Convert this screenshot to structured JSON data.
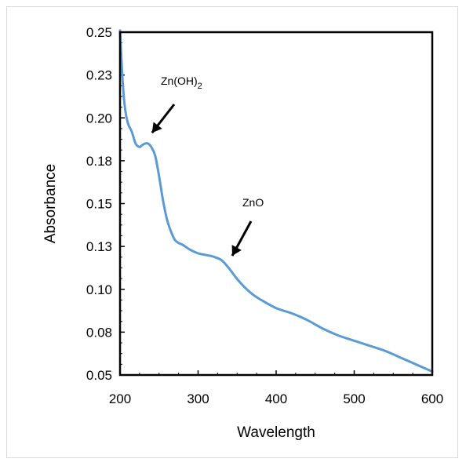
{
  "chart_data": {
    "type": "line",
    "title": "",
    "xlabel": "Wavelength",
    "ylabel": "Absorbance",
    "xlim": [
      200,
      600
    ],
    "ylim": [
      0.05,
      0.25
    ],
    "xticks": [
      "200",
      "300",
      "400",
      "500",
      "600"
    ],
    "yticks": [
      "0.05",
      "0.08",
      "0.10",
      "0.13",
      "0.15",
      "0.18",
      "0.20",
      "0.23",
      "0.25"
    ],
    "grid": false,
    "line_color": "#5b9bd5",
    "series": [
      {
        "x": [
          200,
          203,
          206,
          210,
          215,
          220,
          225,
          228,
          232,
          236,
          240,
          245,
          250,
          255,
          260,
          265,
          270,
          275,
          280,
          290,
          300,
          310,
          320,
          330,
          340,
          350,
          360,
          370,
          380,
          400,
          420,
          440,
          460,
          480,
          500,
          520,
          540,
          560,
          580,
          600
        ],
        "y": [
          0.251,
          0.224,
          0.207,
          0.197,
          0.192,
          0.185,
          0.183,
          0.184,
          0.185,
          0.185,
          0.183,
          0.178,
          0.166,
          0.152,
          0.141,
          0.134,
          0.129,
          0.127,
          0.126,
          0.123,
          0.121,
          0.12,
          0.119,
          0.117,
          0.112,
          0.106,
          0.101,
          0.097,
          0.094,
          0.089,
          0.086,
          0.082,
          0.077,
          0.073,
          0.07,
          0.067,
          0.064,
          0.06,
          0.056,
          0.052
        ]
      }
    ],
    "annotations": [
      {
        "label": "Zn(OH)",
        "subscript": "2",
        "arrow_to": [
          242,
          0.184
        ]
      },
      {
        "label": "ZnO",
        "arrow_to": [
          340,
          0.117
        ]
      }
    ]
  }
}
